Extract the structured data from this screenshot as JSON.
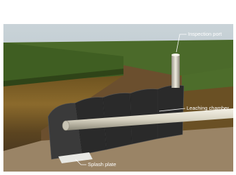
{
  "callouts": [
    {
      "label": "Inspection port"
    },
    {
      "label": "Leaching chamber"
    },
    {
      "label": "Splash plate"
    }
  ]
}
